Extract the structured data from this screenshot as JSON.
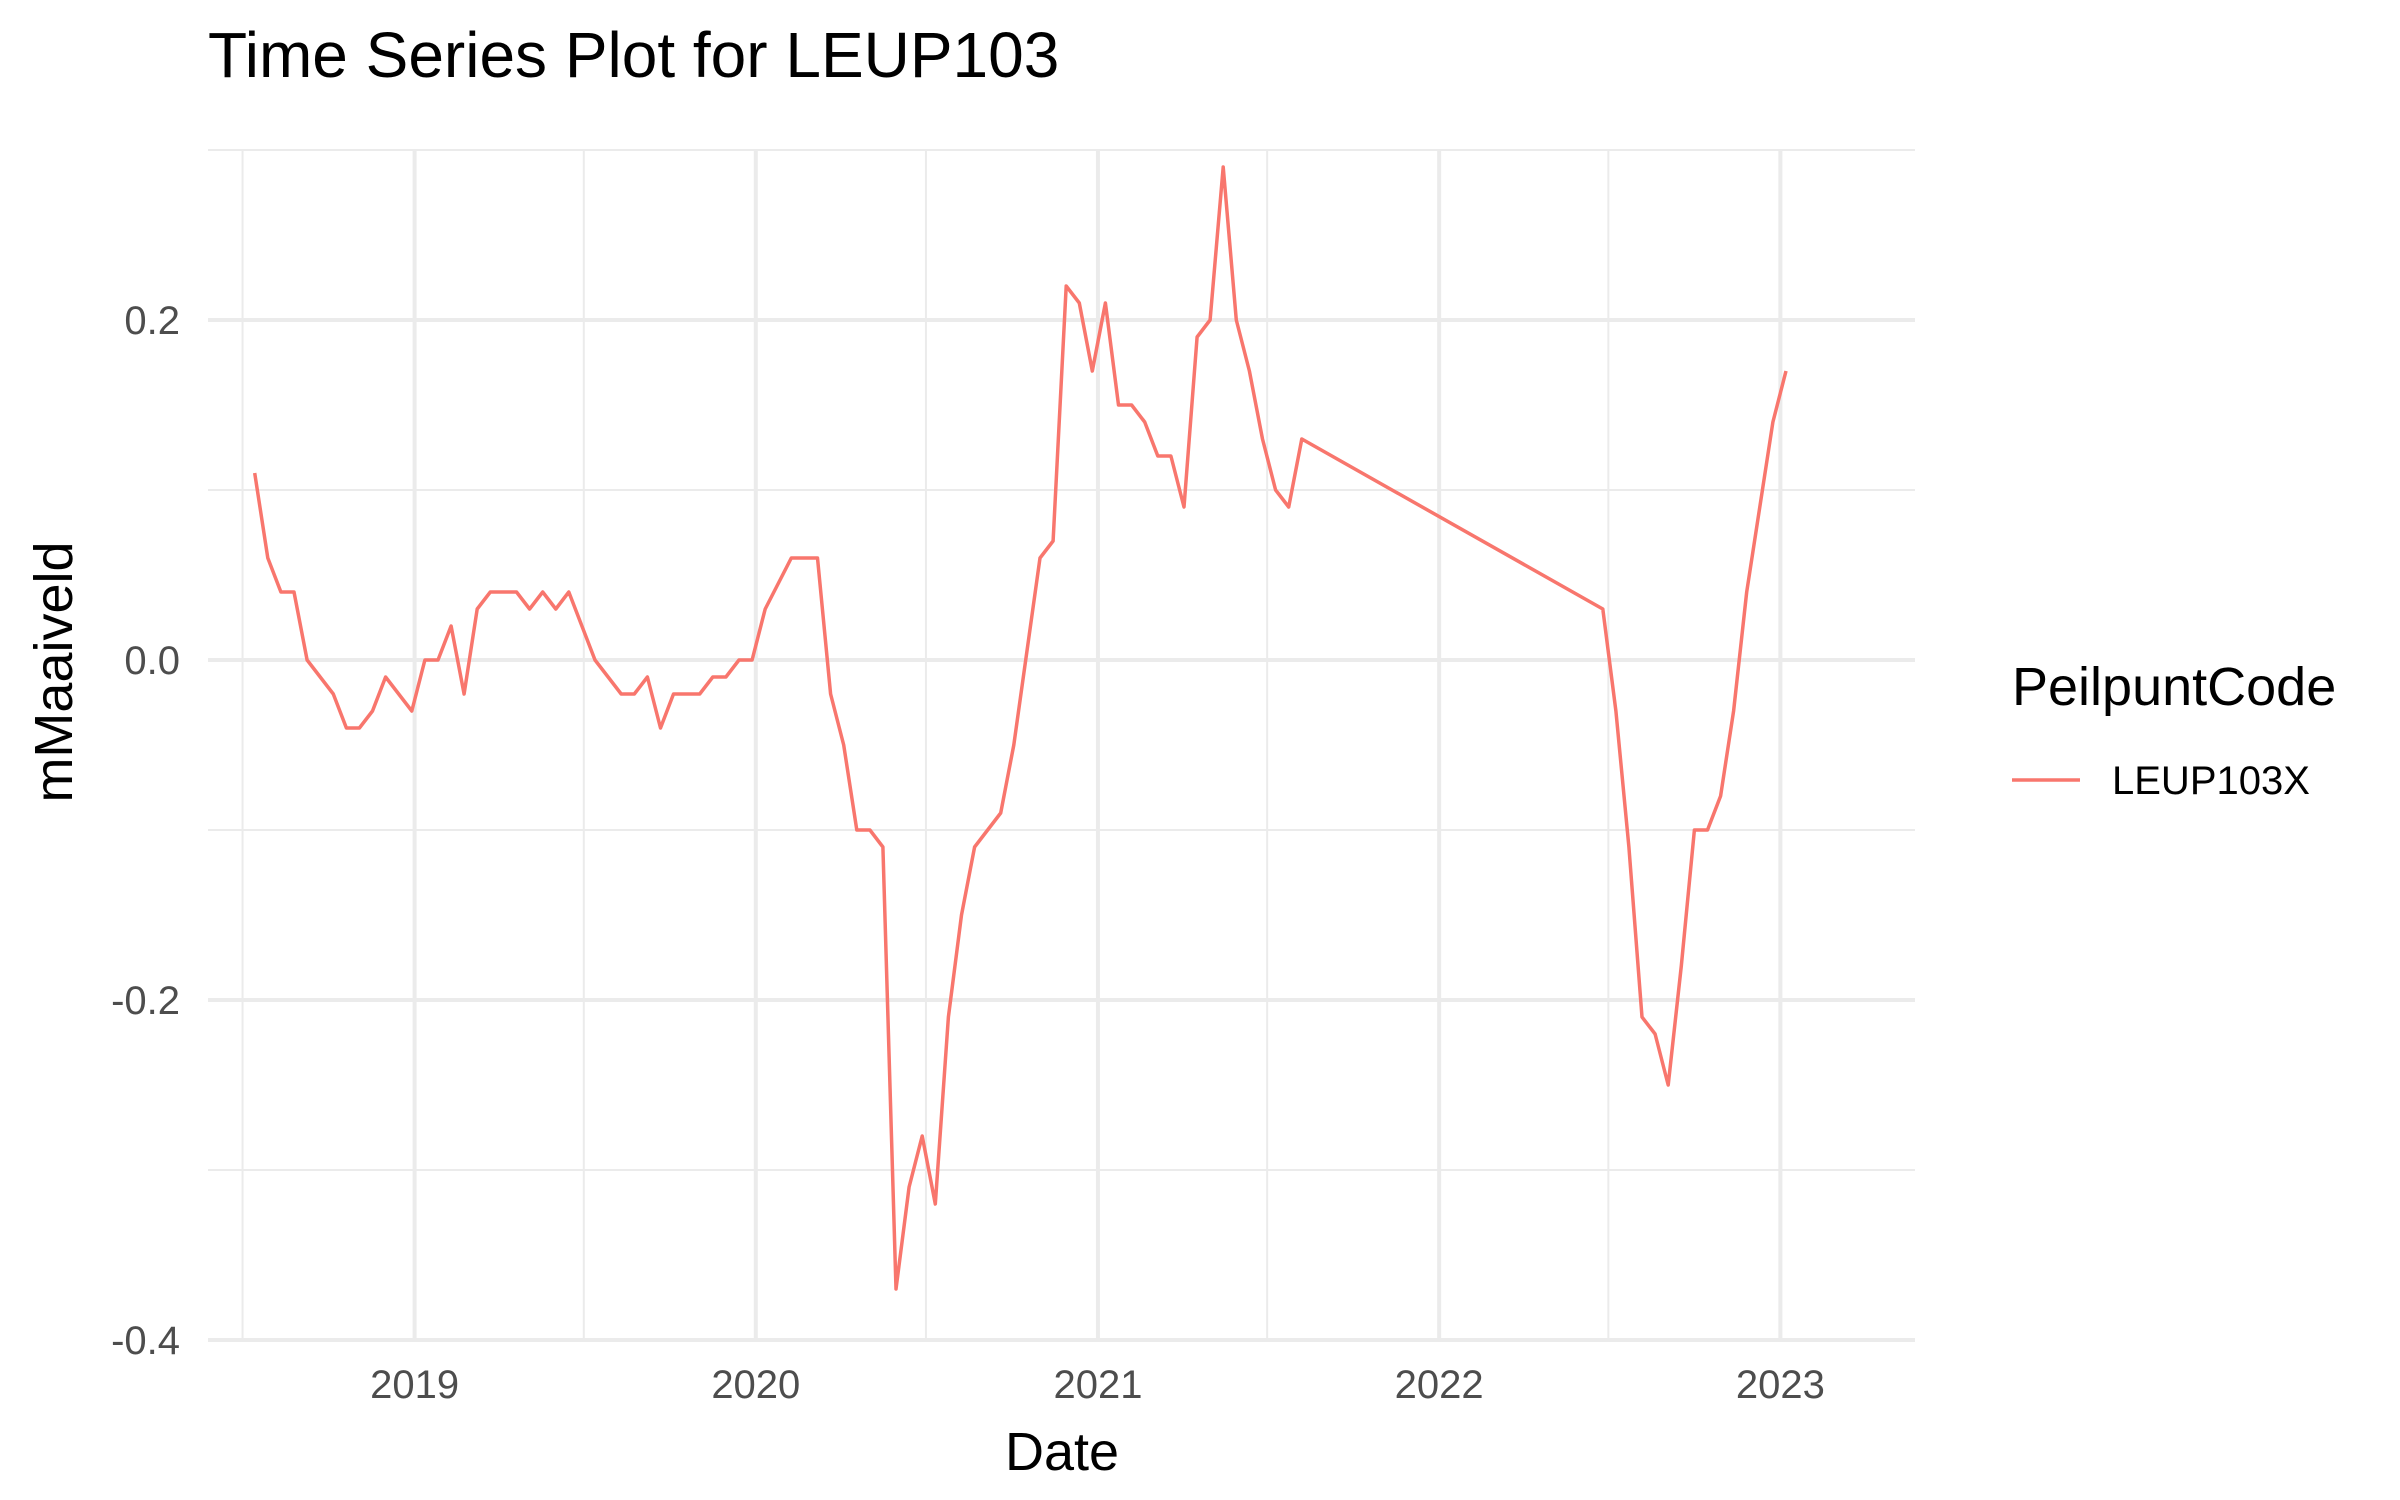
{
  "chart_data": {
    "type": "line",
    "title": "Time Series Plot for LEUP103",
    "xlabel": "Date",
    "ylabel": "mMaaiveld",
    "x_ticks": [
      "2019",
      "2020",
      "2021",
      "2022",
      "2023"
    ],
    "y_ticks": [
      "-0.4",
      "-0.2",
      "0.0",
      "0.2"
    ],
    "xlim": [
      "2018-05-25",
      "2023-05-25"
    ],
    "ylim": [
      -0.4,
      0.3
    ],
    "grid": true,
    "legend": {
      "title": "PeilpuntCode",
      "placement": "right"
    },
    "series": [
      {
        "name": "LEUP103X",
        "color": "#f8766d",
        "points": [
          [
            "2018-07-14",
            0.11
          ],
          [
            "2018-07-28",
            0.06
          ],
          [
            "2018-08-11",
            0.04
          ],
          [
            "2018-08-25",
            0.04
          ],
          [
            "2018-09-08",
            0.0
          ],
          [
            "2018-09-22",
            -0.01
          ],
          [
            "2018-10-06",
            -0.02
          ],
          [
            "2018-10-20",
            -0.04
          ],
          [
            "2018-11-03",
            -0.04
          ],
          [
            "2018-11-17",
            -0.03
          ],
          [
            "2018-12-01",
            -0.01
          ],
          [
            "2018-12-15",
            -0.02
          ],
          [
            "2018-12-29",
            -0.03
          ],
          [
            "2019-01-12",
            0.0
          ],
          [
            "2019-01-26",
            0.0
          ],
          [
            "2019-02-09",
            0.02
          ],
          [
            "2019-02-23",
            -0.02
          ],
          [
            "2019-03-09",
            0.03
          ],
          [
            "2019-03-23",
            0.04
          ],
          [
            "2019-04-06",
            0.04
          ],
          [
            "2019-04-20",
            0.04
          ],
          [
            "2019-05-04",
            0.03
          ],
          [
            "2019-05-18",
            0.04
          ],
          [
            "2019-06-01",
            0.03
          ],
          [
            "2019-06-15",
            0.04
          ],
          [
            "2019-06-29",
            0.02
          ],
          [
            "2019-07-13",
            0.0
          ],
          [
            "2019-07-27",
            -0.01
          ],
          [
            "2019-08-10",
            -0.02
          ],
          [
            "2019-08-24",
            -0.02
          ],
          [
            "2019-09-07",
            -0.01
          ],
          [
            "2019-09-21",
            -0.04
          ],
          [
            "2019-10-05",
            -0.02
          ],
          [
            "2019-10-19",
            -0.02
          ],
          [
            "2019-11-02",
            -0.02
          ],
          [
            "2019-11-16",
            -0.01
          ],
          [
            "2019-11-30",
            -0.01
          ],
          [
            "2019-12-14",
            0.0
          ],
          [
            "2019-12-28",
            0.0
          ],
          [
            "2020-01-11",
            0.03
          ],
          [
            "2020-02-08",
            0.06
          ],
          [
            "2020-02-22",
            0.06
          ],
          [
            "2020-03-07",
            0.06
          ],
          [
            "2020-03-21",
            -0.02
          ],
          [
            "2020-04-04",
            -0.05
          ],
          [
            "2020-04-18",
            -0.1
          ],
          [
            "2020-05-02",
            -0.1
          ],
          [
            "2020-05-16",
            -0.11
          ],
          [
            "2020-05-30",
            -0.37
          ],
          [
            "2020-06-13",
            -0.31
          ],
          [
            "2020-06-27",
            -0.28
          ],
          [
            "2020-07-11",
            -0.32
          ],
          [
            "2020-07-25",
            -0.21
          ],
          [
            "2020-08-08",
            -0.15
          ],
          [
            "2020-08-22",
            -0.11
          ],
          [
            "2020-09-19",
            -0.09
          ],
          [
            "2020-10-03",
            -0.05
          ],
          [
            "2020-10-31",
            0.06
          ],
          [
            "2020-11-14",
            0.07
          ],
          [
            "2020-11-28",
            0.22
          ],
          [
            "2020-12-12",
            0.21
          ],
          [
            "2020-12-26",
            0.17
          ],
          [
            "2021-01-09",
            0.21
          ],
          [
            "2021-01-23",
            0.15
          ],
          [
            "2021-02-06",
            0.15
          ],
          [
            "2021-02-20",
            0.14
          ],
          [
            "2021-03-06",
            0.12
          ],
          [
            "2021-03-20",
            0.12
          ],
          [
            "2021-04-03",
            0.09
          ],
          [
            "2021-04-17",
            0.19
          ],
          [
            "2021-05-01",
            0.2
          ],
          [
            "2021-05-15",
            0.29
          ],
          [
            "2021-05-29",
            0.2
          ],
          [
            "2021-06-12",
            0.17
          ],
          [
            "2021-06-26",
            0.13
          ],
          [
            "2021-07-10",
            0.1
          ],
          [
            "2021-07-24",
            0.09
          ],
          [
            "2021-08-07",
            0.13
          ],
          [
            "2022-06-25",
            0.03
          ],
          [
            "2022-07-09",
            -0.03
          ],
          [
            "2022-07-23",
            -0.11
          ],
          [
            "2022-08-06",
            -0.21
          ],
          [
            "2022-08-20",
            -0.22
          ],
          [
            "2022-09-03",
            -0.25
          ],
          [
            "2022-09-17",
            -0.18
          ],
          [
            "2022-10-01",
            -0.1
          ],
          [
            "2022-10-15",
            -0.1
          ],
          [
            "2022-10-29",
            -0.08
          ],
          [
            "2022-11-12",
            -0.03
          ],
          [
            "2022-11-26",
            0.04
          ],
          [
            "2022-12-10",
            0.09
          ],
          [
            "2022-12-24",
            0.14
          ],
          [
            "2023-01-07",
            0.17
          ]
        ]
      }
    ]
  }
}
